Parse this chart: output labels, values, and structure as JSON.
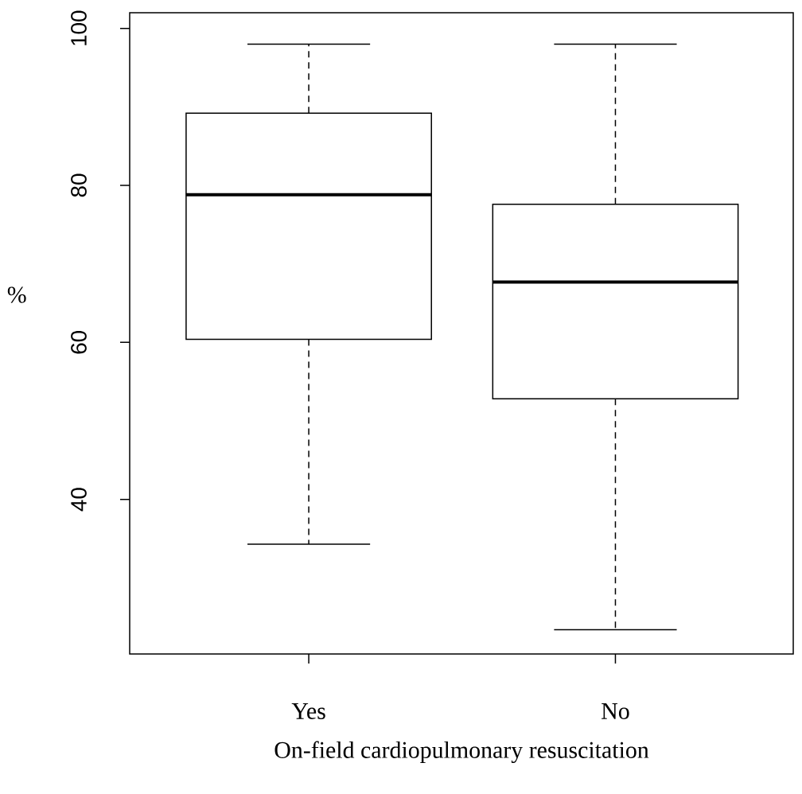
{
  "chart_data": {
    "type": "box",
    "xlabel": "On-field cardiopulmonary resuscitation",
    "ylabel": "%",
    "categories": [
      "Yes",
      "No"
    ],
    "boxes": [
      {
        "low": 34.3,
        "q1": 60.4,
        "median": 78.8,
        "q3": 89.2,
        "high": 98.0
      },
      {
        "low": 23.4,
        "q1": 52.8,
        "median": 67.7,
        "q3": 77.6,
        "high": 98.0
      }
    ],
    "ylim": [
      20.3,
      102
    ],
    "yticks": [
      40,
      60,
      80,
      100
    ]
  }
}
